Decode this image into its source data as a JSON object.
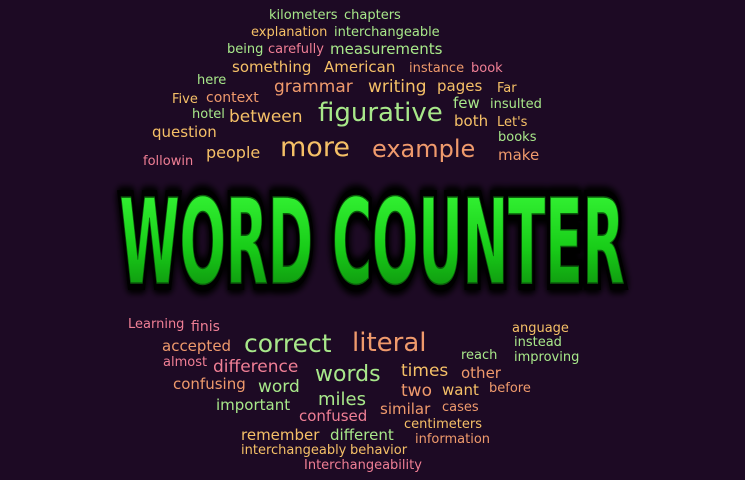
{
  "colors": {
    "background": "#1d0a24",
    "green": "#a8e88a",
    "orange": "#f5c067",
    "pink": "#f07f95",
    "salmon": "#ef9a6c",
    "title_fill": "#22ee22",
    "title_outline": "#000000"
  },
  "title": "WORD COUNTER",
  "words": [
    {
      "text": "kilometers",
      "color": "green"
    },
    {
      "text": "chapters",
      "color": "green"
    },
    {
      "text": "explanation",
      "color": "orange"
    },
    {
      "text": "interchangeable",
      "color": "green"
    },
    {
      "text": "being",
      "color": "green"
    },
    {
      "text": "carefully",
      "color": "pink"
    },
    {
      "text": "measurements",
      "color": "green"
    },
    {
      "text": "something",
      "color": "orange"
    },
    {
      "text": "American",
      "color": "orange"
    },
    {
      "text": "instance",
      "color": "salmon"
    },
    {
      "text": "book",
      "color": "pink"
    },
    {
      "text": "here",
      "color": "green"
    },
    {
      "text": "grammar",
      "color": "salmon"
    },
    {
      "text": "writing",
      "color": "orange"
    },
    {
      "text": "pages",
      "color": "orange"
    },
    {
      "text": "Far",
      "color": "orange"
    },
    {
      "text": "Five",
      "color": "orange"
    },
    {
      "text": "context",
      "color": "salmon"
    },
    {
      "text": "few",
      "color": "green"
    },
    {
      "text": "insulted",
      "color": "green"
    },
    {
      "text": "hotel",
      "color": "green"
    },
    {
      "text": "between",
      "color": "orange"
    },
    {
      "text": "figurative",
      "color": "green"
    },
    {
      "text": "both",
      "color": "orange"
    },
    {
      "text": "Let's",
      "color": "orange"
    },
    {
      "text": "question",
      "color": "orange"
    },
    {
      "text": "books",
      "color": "green"
    },
    {
      "text": "people",
      "color": "orange"
    },
    {
      "text": "more",
      "color": "orange"
    },
    {
      "text": "example",
      "color": "salmon"
    },
    {
      "text": "make",
      "color": "salmon"
    },
    {
      "text": "followin",
      "color": "pink"
    },
    {
      "text": "Learning",
      "color": "pink"
    },
    {
      "text": "finis",
      "color": "pink"
    },
    {
      "text": "accepted",
      "color": "salmon"
    },
    {
      "text": "correct",
      "color": "green"
    },
    {
      "text": "literal",
      "color": "salmon"
    },
    {
      "text": "anguage",
      "color": "orange"
    },
    {
      "text": "instead",
      "color": "green"
    },
    {
      "text": "reach",
      "color": "green"
    },
    {
      "text": "improving",
      "color": "green"
    },
    {
      "text": "almost",
      "color": "pink"
    },
    {
      "text": "difference",
      "color": "pink"
    },
    {
      "text": "words",
      "color": "green"
    },
    {
      "text": "times",
      "color": "orange"
    },
    {
      "text": "other",
      "color": "salmon"
    },
    {
      "text": "confusing",
      "color": "salmon"
    },
    {
      "text": "word",
      "color": "green"
    },
    {
      "text": "two",
      "color": "salmon"
    },
    {
      "text": "want",
      "color": "orange"
    },
    {
      "text": "before",
      "color": "salmon"
    },
    {
      "text": "miles",
      "color": "green"
    },
    {
      "text": "important",
      "color": "green"
    },
    {
      "text": "confused",
      "color": "pink"
    },
    {
      "text": "similar",
      "color": "salmon"
    },
    {
      "text": "cases",
      "color": "salmon"
    },
    {
      "text": "centimeters",
      "color": "orange"
    },
    {
      "text": "remember",
      "color": "orange"
    },
    {
      "text": "different",
      "color": "green"
    },
    {
      "text": "information",
      "color": "salmon"
    },
    {
      "text": "interchangeably",
      "color": "orange"
    },
    {
      "text": "behavior",
      "color": "orange"
    },
    {
      "text": "Interchangeability",
      "color": "pink"
    }
  ]
}
